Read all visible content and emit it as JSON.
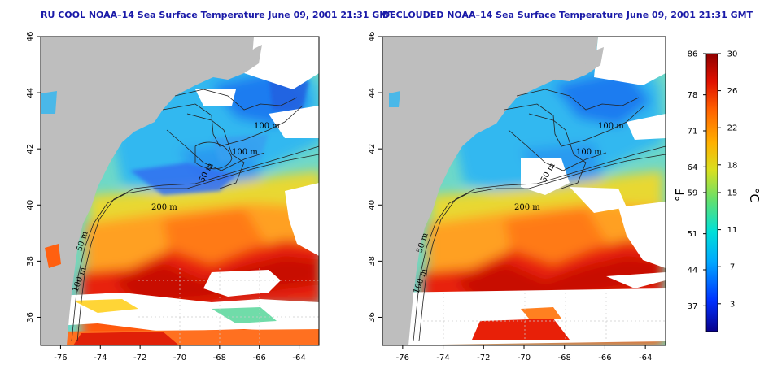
{
  "maps": [
    {
      "title": "RU COOL NOAA–14 Sea Surface Temperature June 09, 2001 21:31 GMT",
      "variant": "raw"
    },
    {
      "title": "DECLOUDED NOAA–14 Sea Surface Temperature June 09, 2001 21:31 GMT",
      "variant": "declouded"
    }
  ],
  "axes": {
    "longitude_ticks": [
      "-76",
      "-74",
      "-72",
      "-70",
      "-68",
      "-66",
      "-64"
    ],
    "latitude_ticks": [
      "46",
      "44",
      "42",
      "40",
      "38",
      "36"
    ],
    "lon_range": [
      -77,
      -63
    ],
    "lat_range": [
      35,
      46
    ]
  },
  "contour_labels": [
    "100 m",
    "100 m",
    "200 m",
    "50 m",
    "100 m",
    "50 m"
  ],
  "colorbar": {
    "fahrenheit_label": "°F",
    "celsius_label": "°C",
    "fahrenheit_ticks": [
      "86",
      "78",
      "71",
      "64",
      "59",
      "51",
      "44",
      "37"
    ],
    "celsius_ticks": [
      "30",
      "26",
      "22",
      "18",
      "15",
      "11",
      "7",
      "3"
    ],
    "range_c": [
      0,
      30
    ],
    "colors": [
      "#08008a",
      "#0030ff",
      "#00a8ff",
      "#00e0d8",
      "#60e070",
      "#d8e020",
      "#ffb000",
      "#ff6000",
      "#e01000",
      "#900000"
    ]
  },
  "colors": {
    "land": "#bebebe",
    "cloud": "#ffffff",
    "title": "#1a1aa8"
  }
}
